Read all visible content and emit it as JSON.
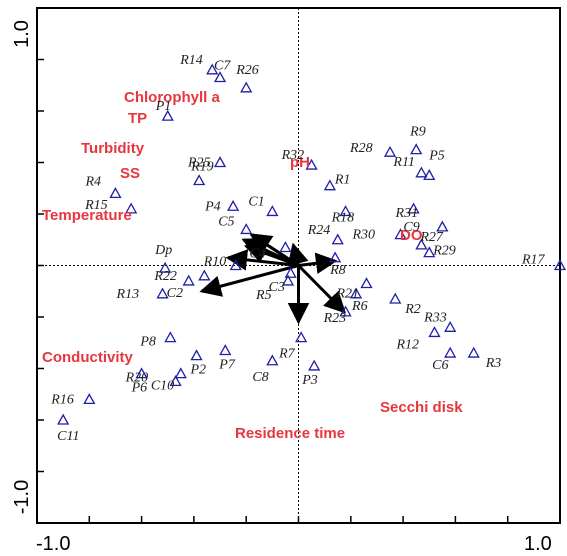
{
  "chart_data": {
    "type": "scatter",
    "title": "",
    "xlabel": "",
    "ylabel": "",
    "xlim": [
      -1.0,
      1.0
    ],
    "ylim": [
      -1.0,
      1.0
    ],
    "x_ticks": [
      {
        "value": -1.0,
        "label": "-1.0"
      },
      {
        "value": 1.0,
        "label": "1.0"
      }
    ],
    "y_ticks": [
      {
        "value": -1.0,
        "label": "-1.0"
      },
      {
        "value": 1.0,
        "label": "1.0"
      }
    ],
    "minor_tick_step": 0.2,
    "reference_lines": {
      "x": 0,
      "y": 0,
      "style": "dotted"
    },
    "marker": "hollow-triangle",
    "marker_color": "#1f1fa8",
    "vector_color": "#000000",
    "variable_label_color": "#e8363f",
    "environmental_vectors": [
      {
        "name": "Chlorophyll a",
        "x": -0.18,
        "y": 0.12
      },
      {
        "name": "TP",
        "x": -0.18,
        "y": 0.12
      },
      {
        "name": "Turbidity",
        "x": -0.21,
        "y": 0.1
      },
      {
        "name": "SS",
        "x": -0.2,
        "y": 0.075
      },
      {
        "name": "Temperature",
        "x": -0.27,
        "y": 0.03
      },
      {
        "name": "Conductivity",
        "x": -0.37,
        "y": -0.1
      },
      {
        "name": "pH",
        "x": -0.02,
        "y": 0.08
      },
      {
        "name": "DO",
        "x": 0.14,
        "y": 0.018
      },
      {
        "name": "Secchi disk",
        "x": 0.175,
        "y": -0.18
      },
      {
        "name": "Residence time",
        "x": 0.0,
        "y": -0.22
      }
    ],
    "series": [
      {
        "name": "",
        "points": [
          {
            "label": "R1",
            "x": 0.12,
            "y": 0.31
          },
          {
            "label": "R2",
            "x": 0.37,
            "y": -0.13
          },
          {
            "label": "R3",
            "x": 0.67,
            "y": -0.34
          },
          {
            "label": "R4",
            "x": -0.7,
            "y": 0.28
          },
          {
            "label": "R5",
            "x": -0.04,
            "y": -0.06
          },
          {
            "label": "R6",
            "x": 0.22,
            "y": -0.11
          },
          {
            "label": "R8",
            "x": 0.14,
            "y": 0.03
          },
          {
            "label": "R9",
            "x": 0.45,
            "y": 0.45
          },
          {
            "label": "R10",
            "x": -0.24,
            "y": 0.0
          },
          {
            "label": "R11",
            "x": 0.47,
            "y": 0.36
          },
          {
            "label": "R12",
            "x": 0.52,
            "y": -0.26
          },
          {
            "label": "R13",
            "x": -0.52,
            "y": -0.11
          },
          {
            "label": "R14",
            "x": -0.33,
            "y": 0.76
          },
          {
            "label": "R15",
            "x": -0.64,
            "y": 0.22
          },
          {
            "label": "R16",
            "x": -0.8,
            "y": -0.52
          },
          {
            "label": "R17",
            "x": 1.0,
            "y": 0.0
          },
          {
            "label": "R18",
            "x": 0.18,
            "y": 0.21
          },
          {
            "label": "R19",
            "x": -0.38,
            "y": 0.33
          },
          {
            "label": "R20",
            "x": -0.47,
            "y": -0.45
          },
          {
            "label": "R21",
            "x": 0.26,
            "y": -0.07
          },
          {
            "label": "R22",
            "x": -0.36,
            "y": -0.04
          },
          {
            "label": "R23",
            "x": 0.18,
            "y": -0.18
          },
          {
            "label": "R24",
            "x": 0.15,
            "y": 0.1
          },
          {
            "label": "R25",
            "x": -0.3,
            "y": 0.4
          },
          {
            "label": "R26",
            "x": -0.2,
            "y": 0.69
          },
          {
            "label": "R27",
            "x": 0.55,
            "y": 0.15
          },
          {
            "label": "R28",
            "x": 0.35,
            "y": 0.44
          },
          {
            "label": "R29",
            "x": 0.5,
            "y": 0.05
          },
          {
            "label": "R30",
            "x": 0.39,
            "y": 0.12
          },
          {
            "label": "R31",
            "x": 0.44,
            "y": 0.22
          },
          {
            "label": "R32",
            "x": 0.05,
            "y": 0.39
          },
          {
            "label": "R33",
            "x": 0.58,
            "y": -0.24
          },
          {
            "label": "P1",
            "x": -0.5,
            "y": 0.58
          },
          {
            "label": "P2",
            "x": -0.39,
            "y": -0.35
          },
          {
            "label": "P3",
            "x": 0.06,
            "y": -0.39
          },
          {
            "label": "P4",
            "x": -0.25,
            "y": 0.23
          },
          {
            "label": "P5",
            "x": 0.5,
            "y": 0.35
          },
          {
            "label": "P6",
            "x": -0.6,
            "y": -0.42
          },
          {
            "label": "P7",
            "x": -0.28,
            "y": -0.33
          },
          {
            "label": "P8",
            "x": -0.49,
            "y": -0.28
          },
          {
            "label": "C1",
            "x": -0.1,
            "y": 0.21
          },
          {
            "label": "C2",
            "x": -0.42,
            "y": -0.06
          },
          {
            "label": "C3",
            "x": -0.03,
            "y": -0.03
          },
          {
            "label": "C4",
            "x": -0.05,
            "y": 0.07
          },
          {
            "label": "C5",
            "x": -0.2,
            "y": 0.14
          },
          {
            "label": "C6",
            "x": 0.58,
            "y": -0.34
          },
          {
            "label": "C7",
            "x": -0.3,
            "y": 0.73
          },
          {
            "label": "C8",
            "x": -0.1,
            "y": -0.37
          },
          {
            "label": "C9",
            "x": 0.47,
            "y": 0.08
          },
          {
            "label": "C10",
            "x": -0.45,
            "y": -0.42
          },
          {
            "label": "C11",
            "x": -0.9,
            "y": -0.6
          },
          {
            "label": "Dp",
            "x": -0.51,
            "y": -0.01
          },
          {
            "label": "R7",
            "x": 0.01,
            "y": -0.28
          }
        ]
      }
    ]
  }
}
